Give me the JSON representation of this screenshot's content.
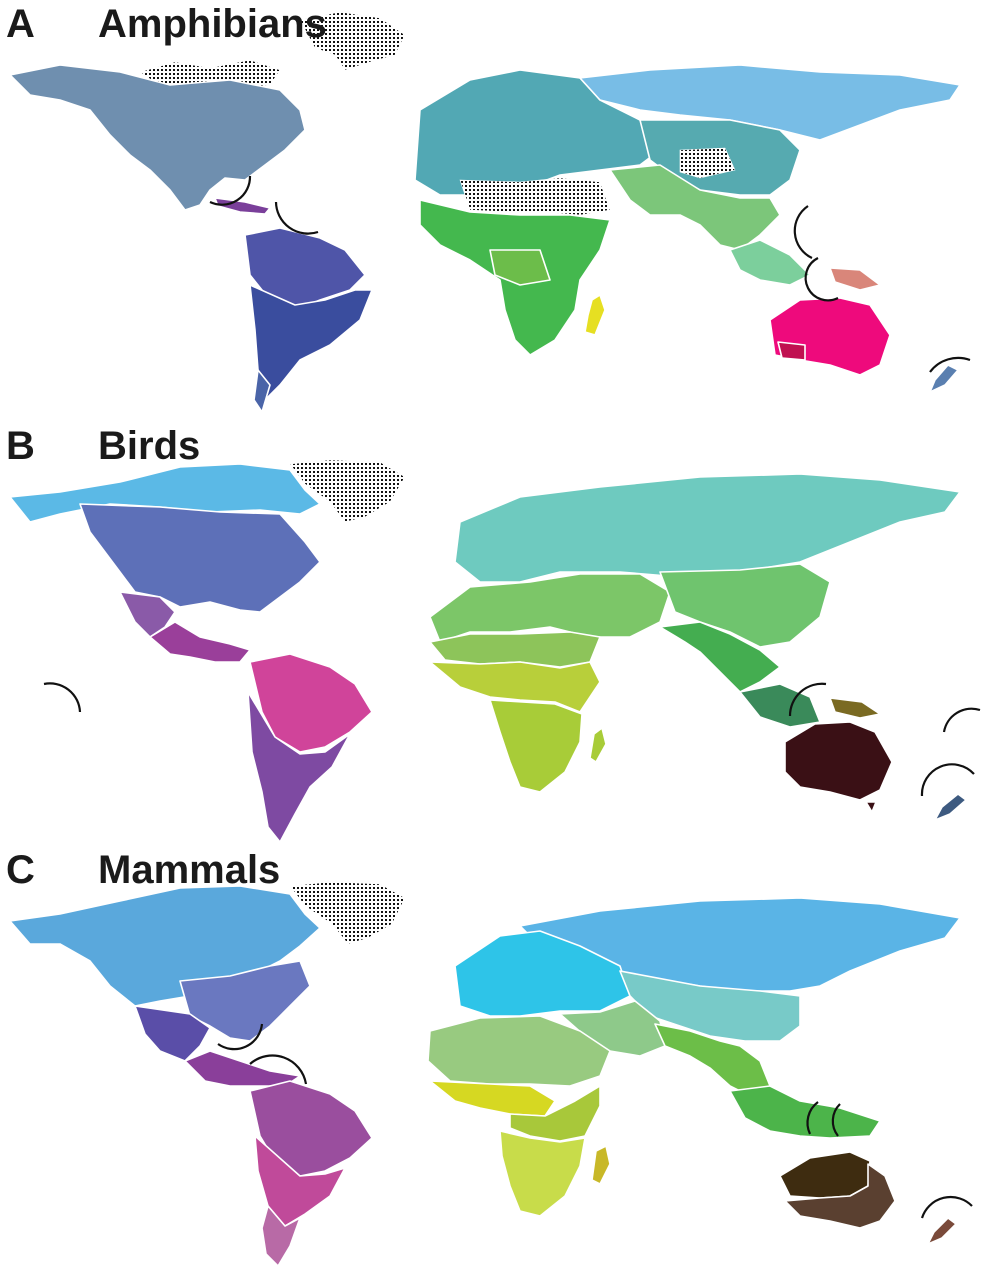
{
  "panels": [
    {
      "letter": "A",
      "title": "Amphibians",
      "colors": {
        "north_america": "#6f8faf",
        "caribbean": "#7a3f9a",
        "south_america_north": "#4f55a8",
        "south_america_south": "#3a4d9e",
        "patagonia": "#4a64a8",
        "europe_north_africa": "#52a8b4",
        "siberia": "#78bde6",
        "east_asia": "#56aab0",
        "middle_east": "#6fbf8a",
        "south_asia": "#7cc67a",
        "southeast_asia": "#7ccf9c",
        "subsaharan_africa": "#44b84e",
        "central_africa": "#6cbd4a",
        "madagascar": "#e6df22",
        "new_guinea": "#d9867a",
        "australia": "#ee0a7c",
        "sw_australia": "#c01050",
        "new_zealand": "#5a7fb0"
      }
    },
    {
      "letter": "B",
      "title": "Birds",
      "colors": {
        "arctic": "#5bb9e6",
        "north_america": "#5d70b8",
        "mexico": "#8a5aa8",
        "central_america": "#9a3f9a",
        "south_america_north": "#d0449a",
        "south_america_south": "#7e4aa2",
        "palearctic": "#6ecabf",
        "mediterranean": "#7cc668",
        "china": "#6fc46e",
        "india": "#44ad50",
        "africa_north": "#8dc45a",
        "africa_south": "#a8cc38",
        "sahel": "#b8cf3a",
        "southeast_asia": "#3a8a5a",
        "new_guinea": "#7a6a22",
        "australia": "#3a1015",
        "new_zealand": "#3d5a80"
      }
    },
    {
      "letter": "C",
      "title": "Mammals",
      "colors": {
        "arctic": "#5aa8dc",
        "north_america_east": "#6a78c0",
        "mexico": "#5a4ea8",
        "central_america": "#8a3f9a",
        "south_america_north": "#9a4e9e",
        "south_america_south": "#c04a9a",
        "patagonia": "#b86aa6",
        "europe": "#2ec4e8",
        "siberia": "#5ab4e6",
        "central_asia": "#78cac8",
        "middle_east": "#8ec98a",
        "india": "#6cbe48",
        "southeast_asia": "#4cb44a",
        "north_africa": "#98ca80",
        "west_africa": "#d6d822",
        "central_africa": "#a8c83a",
        "south_africa": "#c8dc4a",
        "madagascar": "#c8b828",
        "australia_north": "#3e2c10",
        "australia_south": "#5a4030",
        "new_zealand": "#7a4a3a"
      }
    }
  ]
}
